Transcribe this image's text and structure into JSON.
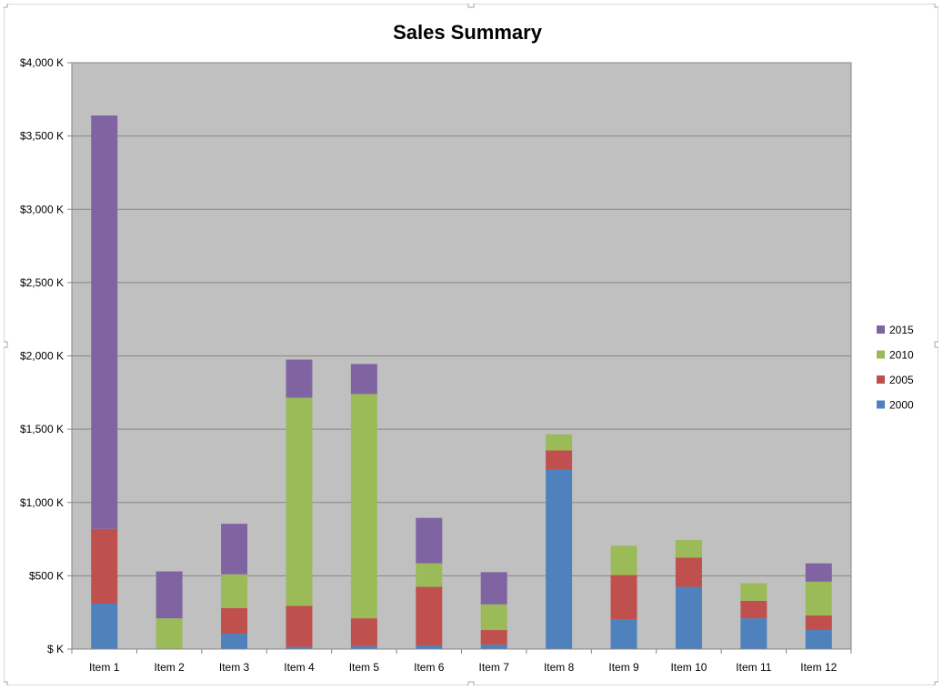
{
  "chart_data": {
    "type": "bar",
    "stacked": true,
    "title": "Sales Summary",
    "xlabel": "",
    "ylabel": "",
    "ylim": [
      0,
      4000
    ],
    "y_tick_values": [
      0,
      500,
      1000,
      1500,
      2000,
      2500,
      3000,
      3500,
      4000
    ],
    "y_tick_labels": [
      "$ K",
      "$500 K",
      "$1,000 K",
      "$1,500 K",
      "$2,000 K",
      "$2,500 K",
      "$3,000 K",
      "$3,500 K",
      "$4,000 K"
    ],
    "grid": true,
    "legend_position": "right",
    "categories": [
      "Item 1",
      "Item 2",
      "Item 3",
      "Item 4",
      "Item 5",
      "Item 6",
      "Item 7",
      "Item 8",
      "Item 9",
      "Item 10",
      "Item 11",
      "Item 12"
    ],
    "series": [
      {
        "name": "2000",
        "color": "#4f81bd",
        "values": [
          310,
          0,
          105,
          15,
          20,
          25,
          30,
          1225,
          200,
          425,
          210,
          130
        ]
      },
      {
        "name": "2005",
        "color": "#c0504d",
        "values": [
          510,
          0,
          175,
          280,
          190,
          400,
          100,
          130,
          305,
          200,
          120,
          100
        ]
      },
      {
        "name": "2010",
        "color": "#9bbb59",
        "values": [
          0,
          210,
          230,
          1420,
          1530,
          160,
          175,
          110,
          200,
          120,
          120,
          230
        ]
      },
      {
        "name": "2015",
        "color": "#8064a2",
        "values": [
          2820,
          320,
          345,
          260,
          205,
          310,
          220,
          0,
          0,
          0,
          0,
          125
        ]
      }
    ],
    "colors": {
      "plot_bg": "#c0c0c0",
      "gridline": "#868686",
      "text": "#000000"
    }
  }
}
